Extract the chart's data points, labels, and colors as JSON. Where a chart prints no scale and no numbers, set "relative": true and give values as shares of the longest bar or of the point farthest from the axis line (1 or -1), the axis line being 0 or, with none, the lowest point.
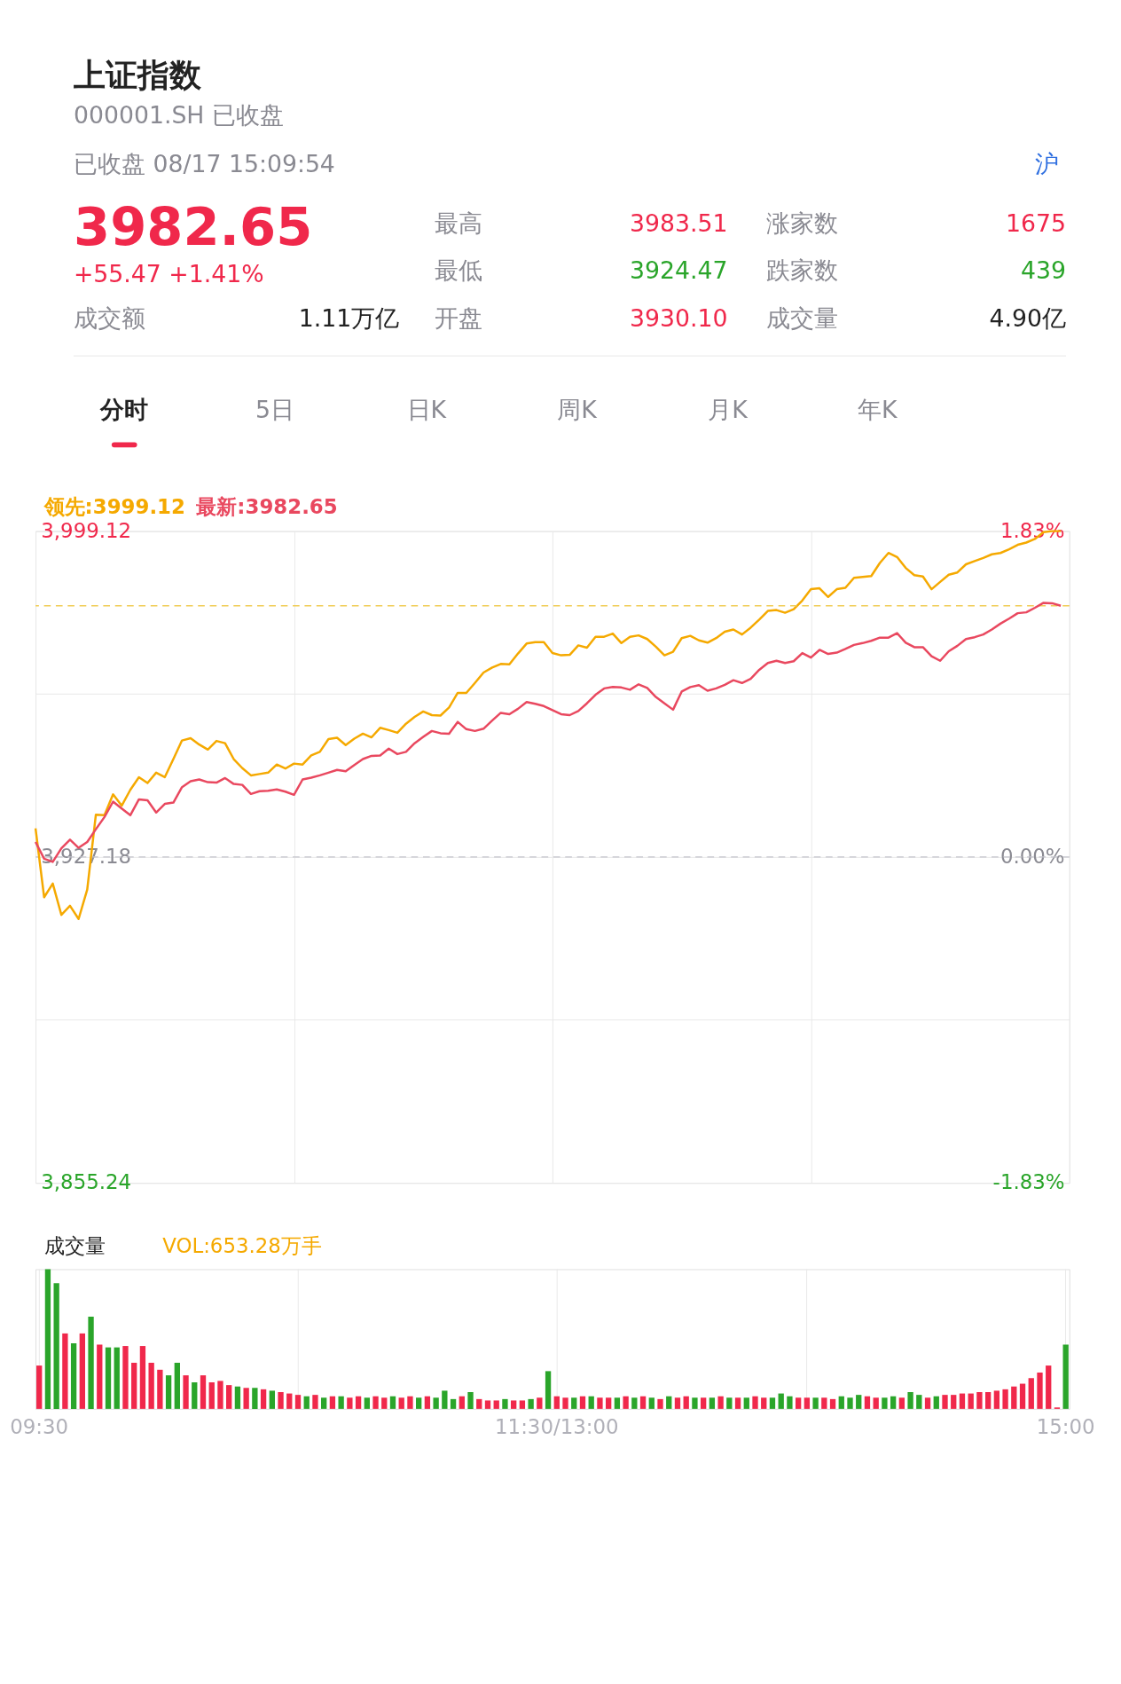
{
  "chart_data": [
    {
      "type": "other",
      "title": "上证指数",
      "subtitle": "000001.SH 已收盘",
      "annotations": [
        "已收盘 08/17 15:09:54",
        "沪",
        "3982.65",
        "+55.47  +1.41%",
        "成交额",
        "1.11万亿",
        "最高",
        "3983.51",
        "最低",
        "3924.47",
        "开盘",
        "3930.10",
        "涨家数",
        "1675",
        "跌家数",
        "439",
        "成交量",
        "4.90亿",
        "分时",
        "5日",
        "日K",
        "周K",
        "月K",
        "年K"
      ]
    },
    {
      "type": "line",
      "annotations": [
        "领先:3999.12",
        "最新:3982.65"
      ],
      "categories": [
        null,
        null,
        null,
        null,
        null,
        null,
        null,
        null,
        null,
        null,
        null,
        null,
        null,
        null,
        null,
        null,
        null,
        null,
        null,
        null,
        null,
        null,
        null,
        null,
        null,
        null,
        null,
        null,
        null,
        null,
        null,
        null,
        null,
        null,
        null,
        null,
        null,
        null,
        null,
        null,
        null,
        null,
        null,
        null,
        null,
        null,
        null,
        null,
        null,
        null,
        null,
        null,
        null,
        null,
        null,
        null,
        null,
        null,
        null,
        null,
        null,
        null,
        null,
        null,
        null,
        null,
        null,
        null,
        null,
        null,
        null,
        null,
        null,
        null,
        null,
        null,
        null,
        null,
        null,
        null,
        null,
        null,
        null,
        null,
        null,
        null,
        null,
        null,
        null,
        null,
        null,
        null,
        null,
        null,
        null,
        null,
        null,
        null,
        null,
        null,
        null,
        null,
        null,
        null,
        null,
        null,
        null,
        null,
        null,
        null,
        null,
        null,
        null,
        null,
        null,
        null,
        null,
        null,
        null,
        null,
        null
      ],
      "ylim": [
        3855.24,
        3999.12
      ],
      "yticks": [
        {
          "value": 3855.24,
          "label": "3,855.24"
        },
        {
          "value": 3891.21,
          "label": null
        },
        {
          "value": 3927.18,
          "label": "3,927.18"
        },
        {
          "value": 3963.15,
          "label": null
        },
        {
          "value": 3999.12,
          "label": "3,999.12"
        }
      ],
      "y2lim": [
        -1.83,
        1.83
      ],
      "y2ticks": [
        {
          "value": -1.83,
          "label": "-1.83%"
        },
        {
          "value": 0,
          "label": "0.00%"
        },
        {
          "value": 1.83,
          "label": "1.83%"
        }
      ],
      "grid": true,
      "tick_labels": "y",
      "line_style": "solid",
      "ref_lines": [
        {
          "axis": "y",
          "value": 3982.65,
          "color": "#f0cc55",
          "line_style": "dashed"
        },
        {
          "axis": "y2",
          "value": 0,
          "color": "#c4c4cc",
          "line_style": "dashed"
        }
      ],
      "series": [
        {
          "type": "line",
          "color": "#f5a900",
          "values": [
            3933.5,
            3918.3,
            3921.3,
            3914.4,
            3916.4,
            3913.5,
            3920,
            3936.5,
            3936.4,
            3941,
            3938.5,
            3942,
            3944.8,
            3943.5,
            3945.8,
            3944.8,
            3948.8,
            3952.9,
            3953.4,
            3952,
            3950.9,
            3952.8,
            3952.3,
            3948.8,
            3946.8,
            3945.2,
            3945.5,
            3945.8,
            3947.6,
            3946.7,
            3947.8,
            3947.6,
            3949.6,
            3950.4,
            3953.2,
            3953.5,
            3951.9,
            3953.3,
            3954.4,
            3953.6,
            3955.7,
            3955.2,
            3954.6,
            3956.6,
            3958.1,
            3959.3,
            3958.5,
            3958.4,
            3960.2,
            3963.4,
            3963.4,
            3965.6,
            3967.9,
            3969,
            3969.8,
            3969.7,
            3972.1,
            3974.3,
            3974.6,
            3974.6,
            3972.2,
            3971.7,
            3971.8,
            3973.9,
            3973.4,
            3975.8,
            3975.8,
            3976.5,
            3974.4,
            3975.8,
            3976.1,
            3975.3,
            3973.6,
            3971.7,
            3972.5,
            3975.5,
            3976,
            3975,
            3974.5,
            3975.5,
            3976.9,
            3977.4,
            3976.3,
            3977.8,
            3979.6,
            3981.5,
            3981.7,
            3981.1,
            3981.9,
            3983.8,
            3986.3,
            3986.5,
            3984.6,
            3986.3,
            3986.6,
            3988.8,
            3989,
            3989.2,
            3992.1,
            3994.3,
            3993.4,
            3991,
            3989.4,
            3989.1,
            3986.3,
            3987.9,
            3989.5,
            3990,
            3991.8,
            3992.5,
            3993.2,
            3994,
            3994.3,
            3995.1,
            3996.1,
            3996.6,
            3997.4,
            3998.9,
            3999.12,
            3999.12,
            null
          ]
        },
        {
          "type": "line",
          "color": "#e9485f",
          "values": [
            3930.5,
            3926.8,
            3926.1,
            3929.1,
            3931,
            3929.2,
            3930.5,
            3933.3,
            3936,
            3939.4,
            3937.9,
            3936.4,
            3939.9,
            3939.7,
            3937,
            3938.9,
            3939.2,
            3942.6,
            3943.9,
            3944.3,
            3943.7,
            3943.6,
            3944.6,
            3943.3,
            3943.1,
            3941.1,
            3941.7,
            3941.8,
            3942.1,
            3941.6,
            3940.9,
            3944.3,
            3944.7,
            3945.2,
            3945.8,
            3946.4,
            3946.1,
            3947.5,
            3948.8,
            3949.5,
            3949.6,
            3951.1,
            3949.9,
            3950.4,
            3952.3,
            3953.7,
            3955,
            3954.5,
            3954.4,
            3957,
            3955.4,
            3955,
            3955.5,
            3957.3,
            3959,
            3958.7,
            3959.9,
            3961.4,
            3961,
            3960.5,
            3959.6,
            3958.7,
            3958.5,
            3959.4,
            3961.1,
            3963,
            3964.4,
            3964.7,
            3964.6,
            3964.1,
            3965.3,
            3964.5,
            3962.5,
            3961.1,
            3959.7,
            3963.7,
            3964.7,
            3965.1,
            3963.9,
            3964.4,
            3965.2,
            3966.2,
            3965.6,
            3966.5,
            3968.5,
            3970,
            3970.5,
            3970,
            3970.4,
            3972.2,
            3971.2,
            3972.9,
            3972,
            3972.3,
            3973.1,
            3974,
            3974.4,
            3974.9,
            3975.6,
            3975.6,
            3976.6,
            3974.5,
            3973.5,
            3973.5,
            3971.5,
            3970.5,
            3972.6,
            3973.8,
            3975.3,
            3975.7,
            3976.3,
            3977.4,
            3978.7,
            3979.8,
            3981,
            3981.2,
            3982.2,
            3983.3,
            3983.2,
            3982.65,
            null
          ]
        }
      ]
    },
    {
      "type": "bar",
      "relative": true,
      "annotations": [
        "成交量",
        "VOL:653.28万手"
      ],
      "tick_labels": "x",
      "grid": "x",
      "categories": [
        "09:30",
        null,
        null,
        null,
        null,
        null,
        null,
        null,
        null,
        null,
        null,
        null,
        null,
        null,
        null,
        null,
        null,
        null,
        null,
        null,
        null,
        null,
        null,
        null,
        null,
        null,
        null,
        null,
        null,
        null,
        null,
        null,
        null,
        null,
        null,
        null,
        null,
        null,
        null,
        null,
        null,
        null,
        null,
        null,
        null,
        null,
        null,
        null,
        null,
        null,
        null,
        null,
        null,
        null,
        null,
        null,
        null,
        null,
        null,
        null,
        "11:30/13:00",
        null,
        null,
        null,
        null,
        null,
        null,
        null,
        null,
        null,
        null,
        null,
        null,
        null,
        null,
        null,
        null,
        null,
        null,
        null,
        null,
        null,
        null,
        null,
        null,
        null,
        null,
        null,
        null,
        null,
        null,
        null,
        null,
        null,
        null,
        null,
        null,
        null,
        null,
        null,
        null,
        null,
        null,
        null,
        null,
        null,
        null,
        null,
        null,
        null,
        null,
        null,
        null,
        null,
        null,
        null,
        null,
        null,
        null,
        "15:00"
      ],
      "values": [
        0.31,
        1.0,
        0.9,
        0.54,
        0.47,
        0.54,
        0.66,
        0.46,
        0.44,
        0.44,
        0.45,
        0.33,
        0.45,
        0.33,
        0.28,
        0.24,
        0.33,
        0.24,
        0.19,
        0.24,
        0.19,
        0.2,
        0.17,
        0.16,
        0.15,
        0.15,
        0.14,
        0.13,
        0.12,
        0.11,
        0.1,
        0.09,
        0.1,
        0.08,
        0.09,
        0.09,
        0.08,
        0.09,
        0.08,
        0.09,
        0.08,
        0.09,
        0.08,
        0.09,
        0.08,
        0.09,
        0.08,
        0.13,
        0.07,
        0.09,
        0.12,
        0.07,
        0.06,
        0.06,
        0.07,
        0.06,
        0.06,
        0.07,
        0.08,
        0.27,
        0.09,
        0.08,
        0.08,
        0.09,
        0.09,
        0.08,
        0.08,
        0.08,
        0.09,
        0.08,
        0.09,
        0.08,
        0.07,
        0.09,
        0.08,
        0.09,
        0.08,
        0.08,
        0.08,
        0.09,
        0.08,
        0.08,
        0.08,
        0.09,
        0.08,
        0.08,
        0.11,
        0.09,
        0.08,
        0.08,
        0.08,
        0.08,
        0.07,
        0.09,
        0.08,
        0.1,
        0.09,
        0.08,
        0.08,
        0.09,
        0.08,
        0.12,
        0.1,
        0.08,
        0.09,
        0.1,
        0.1,
        0.11,
        0.11,
        0.12,
        0.12,
        0.13,
        0.14,
        0.16,
        0.18,
        0.22,
        0.26,
        0.31,
        0.01,
        0.46
      ],
      "colors": [
        "#f0284b",
        "#2aa52a",
        "#2aa52a",
        "#f0284b",
        "#2aa52a",
        "#f0284b",
        "#2aa52a",
        "#f0284b",
        "#2aa52a",
        "#2aa52a",
        "#f0284b",
        "#f0284b",
        "#f0284b",
        "#f0284b",
        "#f0284b",
        "#2aa52a",
        "#2aa52a",
        "#f0284b",
        "#2aa52a",
        "#f0284b",
        "#f0284b",
        "#f0284b",
        "#f0284b",
        "#2aa52a",
        "#f0284b",
        "#2aa52a",
        "#f0284b",
        "#2aa52a",
        "#f0284b",
        "#f0284b",
        "#f0284b",
        "#2aa52a",
        "#f0284b",
        "#2aa52a",
        "#f0284b",
        "#2aa52a",
        "#f0284b",
        "#f0284b",
        "#2aa52a",
        "#f0284b",
        "#f0284b",
        "#2aa52a",
        "#f0284b",
        "#f0284b",
        "#2aa52a",
        "#f0284b",
        "#2aa52a",
        "#2aa52a",
        "#2aa52a",
        "#f0284b",
        "#2aa52a",
        "#f0284b",
        "#f0284b",
        "#f0284b",
        "#2aa52a",
        "#f0284b",
        "#f0284b",
        "#2aa52a",
        "#f0284b",
        "#2aa52a",
        "#f0284b",
        "#f0284b",
        "#2aa52a",
        "#f0284b",
        "#2aa52a",
        "#f0284b",
        "#f0284b",
        "#2aa52a",
        "#f0284b",
        "#2aa52a",
        "#f0284b",
        "#2aa52a",
        "#f0284b",
        "#2aa52a",
        "#f0284b",
        "#f0284b",
        "#2aa52a",
        "#f0284b",
        "#2aa52a",
        "#f0284b",
        "#2aa52a",
        "#f0284b",
        "#2aa52a",
        "#f0284b",
        "#f0284b",
        "#2aa52a",
        "#2aa52a",
        "#2aa52a",
        "#f0284b",
        "#f0284b",
        "#2aa52a",
        "#f0284b",
        "#f0284b",
        "#2aa52a",
        "#2aa52a",
        "#2aa52a",
        "#f0284b",
        "#f0284b",
        "#2aa52a",
        "#2aa52a",
        "#f0284b",
        "#2aa52a",
        "#2aa52a",
        "#f0284b",
        "#2aa52a",
        "#f0284b",
        "#f0284b",
        "#f0284b",
        "#f0284b",
        "#f0284b",
        "#f0284b",
        "#f0284b",
        "#f0284b",
        "#f0284b",
        "#f0284b",
        "#f0284b",
        "#f0284b",
        "#f0284b",
        "#f0284b",
        "#2aa52a"
      ]
    }
  ]
}
